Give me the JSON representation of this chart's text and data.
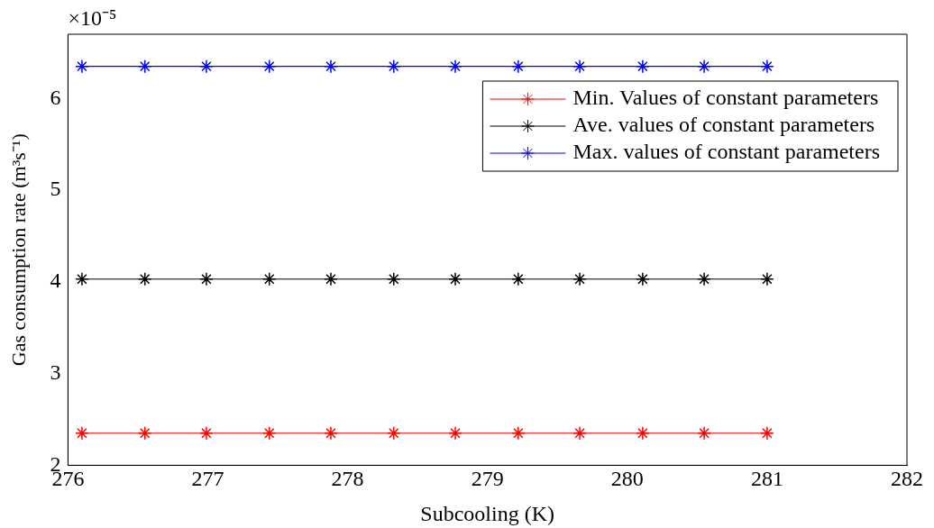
{
  "chart_data": {
    "type": "line",
    "xlabel": "Subcooling (K)",
    "ylabel": "Gas consumption rate (m³s⁻¹)",
    "x": [
      276.1,
      276.55,
      276.99,
      277.44,
      277.88,
      278.33,
      278.77,
      279.22,
      279.66,
      280.11,
      280.55,
      281.0
    ],
    "series": [
      {
        "name": "Min. Values of constant parameters",
        "color": "#ff0000",
        "values": [
          2.35,
          2.35,
          2.35,
          2.35,
          2.35,
          2.35,
          2.35,
          2.35,
          2.35,
          2.35,
          2.35,
          2.35
        ]
      },
      {
        "name": "Ave. values of constant parameters",
        "color": "#000000",
        "values": [
          4.03,
          4.03,
          4.03,
          4.03,
          4.03,
          4.03,
          4.03,
          4.03,
          4.03,
          4.03,
          4.03,
          4.03
        ]
      },
      {
        "name": "Max. values of constant parameters",
        "color": "#0000ff",
        "values": [
          6.35,
          6.35,
          6.35,
          6.35,
          6.35,
          6.35,
          6.35,
          6.35,
          6.35,
          6.35,
          6.35,
          6.35
        ]
      }
    ],
    "xlim": [
      276,
      282
    ],
    "xticks": [
      276,
      277,
      278,
      279,
      280,
      281,
      282
    ],
    "ylim": [
      2,
      6.7
    ],
    "yticks": [
      2,
      3,
      4,
      5,
      6
    ],
    "annotations": [
      "×10⁻⁵"
    ],
    "legend": "top right",
    "marker": "cross",
    "line_style": "solid",
    "grid": false
  }
}
